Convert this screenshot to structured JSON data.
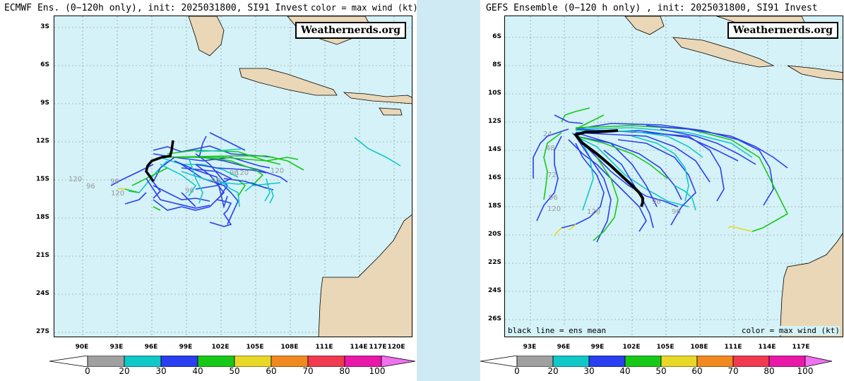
{
  "left": {
    "title": "ECMWF Ens. (0−120h only), init: 2025031800, SI91 Invest",
    "legend_note": "color = max wind (kt)",
    "watermark": "Weathernerds.org",
    "lat_labels": [
      "3S",
      "6S",
      "9S",
      "12S",
      "15S",
      "18S",
      "21S",
      "24S",
      "27S"
    ],
    "lon_labels": [
      "90E",
      "93E",
      "96E",
      "99E",
      "102E",
      "105E",
      "108E",
      "111E",
      "114E",
      "117E",
      "120E"
    ],
    "track_labels": [
      "120",
      "96",
      "96",
      "120",
      "98",
      "96",
      "120",
      "120",
      "96"
    ]
  },
  "right": {
    "title": "GEFS Ensemble (0−120 h only) , init: 2025031800, SI91 Invest",
    "watermark": "Weathernerds.org",
    "lat_labels": [
      "6S",
      "8S",
      "10S",
      "12S",
      "14S",
      "16S",
      "18S",
      "20S",
      "22S",
      "24S",
      "26S"
    ],
    "lon_labels": [
      "93E",
      "96E",
      "99E",
      "102E",
      "105E",
      "108E",
      "111E",
      "114E",
      "117E"
    ],
    "ens_mean_note": "black line = ens mean",
    "legend_note": "color = max wind (kt)",
    "track_labels": [
      "24",
      "48",
      "72",
      "96",
      "120",
      "120",
      "96",
      "96"
    ]
  },
  "colorbar": {
    "labels": [
      "0",
      "20",
      "30",
      "40",
      "50",
      "60",
      "70",
      "80",
      "100"
    ],
    "colors": [
      "#ffffff",
      "#a0a0a0",
      "#10c8c8",
      "#2a3ff0",
      "#18c818",
      "#e8d828",
      "#f08a20",
      "#f03a50",
      "#e818a8",
      "#f070f0"
    ],
    "unit": "kt"
  }
}
